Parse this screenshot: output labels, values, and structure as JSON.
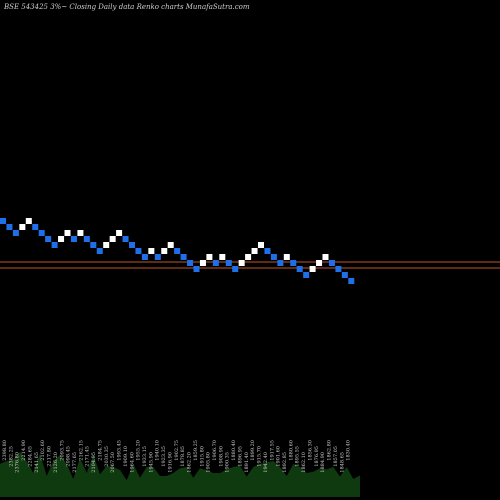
{
  "header": {
    "title": "BSE 543425 3%~  Closing Daily data  Renko  charts MunafaSutra.com"
  },
  "colors": {
    "background": "#000000",
    "up_brick": "#ffffff",
    "down_brick": "#1e6fe8",
    "reference_line": "#c0562a",
    "volume_fill": "#0f3a0f"
  },
  "chart_data": {
    "type": "renko",
    "title": "BSE 543425 3%~  Closing Daily data  Renko  charts MunafaSutra.com",
    "grid": false,
    "reference_levels": [
      1,
      0
    ],
    "bricks": [
      {
        "d": "down",
        "level": 8
      },
      {
        "d": "down",
        "level": 7
      },
      {
        "d": "down",
        "level": 6
      },
      {
        "d": "up",
        "level": 7
      },
      {
        "d": "up",
        "level": 8
      },
      {
        "d": "down",
        "level": 7
      },
      {
        "d": "down",
        "level": 6
      },
      {
        "d": "down",
        "level": 5
      },
      {
        "d": "down",
        "level": 4
      },
      {
        "d": "up",
        "level": 5
      },
      {
        "d": "up",
        "level": 6
      },
      {
        "d": "down",
        "level": 5
      },
      {
        "d": "up",
        "level": 6
      },
      {
        "d": "down",
        "level": 5
      },
      {
        "d": "down",
        "level": 4
      },
      {
        "d": "down",
        "level": 3
      },
      {
        "d": "up",
        "level": 4
      },
      {
        "d": "up",
        "level": 5
      },
      {
        "d": "up",
        "level": 6
      },
      {
        "d": "down",
        "level": 5
      },
      {
        "d": "down",
        "level": 4
      },
      {
        "d": "down",
        "level": 3
      },
      {
        "d": "down",
        "level": 2
      },
      {
        "d": "up",
        "level": 3
      },
      {
        "d": "down",
        "level": 2
      },
      {
        "d": "up",
        "level": 3
      },
      {
        "d": "up",
        "level": 4
      },
      {
        "d": "down",
        "level": 3
      },
      {
        "d": "down",
        "level": 2
      },
      {
        "d": "down",
        "level": 1
      },
      {
        "d": "down",
        "level": 0
      },
      {
        "d": "up",
        "level": 1
      },
      {
        "d": "up",
        "level": 2
      },
      {
        "d": "down",
        "level": 1
      },
      {
        "d": "up",
        "level": 2
      },
      {
        "d": "down",
        "level": 1
      },
      {
        "d": "down",
        "level": 0
      },
      {
        "d": "up",
        "level": 1
      },
      {
        "d": "up",
        "level": 2
      },
      {
        "d": "up",
        "level": 3
      },
      {
        "d": "up",
        "level": 4
      },
      {
        "d": "down",
        "level": 3
      },
      {
        "d": "down",
        "level": 2
      },
      {
        "d": "down",
        "level": 1
      },
      {
        "d": "up",
        "level": 2
      },
      {
        "d": "down",
        "level": 1
      },
      {
        "d": "down",
        "level": 0
      },
      {
        "d": "down",
        "level": -1
      },
      {
        "d": "up",
        "level": 0
      },
      {
        "d": "up",
        "level": 1
      },
      {
        "d": "up",
        "level": 2
      },
      {
        "d": "down",
        "level": 1
      },
      {
        "d": "down",
        "level": 0
      },
      {
        "d": "down",
        "level": -1
      },
      {
        "d": "down",
        "level": -2
      }
    ],
    "volume_labels": [
      "2398.80",
      "2382.25",
      "2376.80",
      "2214.90",
      "2284.65",
      "2141.65",
      "2102.60",
      "2217.80",
      "2126.20",
      "2093.75",
      "2098.45",
      "2177.65",
      "2162.15",
      "2171.45",
      "2104.95",
      "2184.75",
      "2030.35",
      "2067.50",
      "1993.45",
      "1909.10",
      "1964.60",
      "1955.20",
      "1933.15",
      "1945.90",
      "1940.10",
      "1923.35",
      "1916.90",
      "1902.75",
      "1878.85",
      "1862.20",
      "1859.25",
      "1915.80",
      "1905.80",
      "1906.70",
      "1908.90",
      "1900.35",
      "1880.40",
      "1896.95",
      "1891.40",
      "1899.20",
      "1915.70",
      "1942.40",
      "1917.55",
      "1901.60",
      "1892.85",
      "1880.60",
      "1895.55",
      "1862.10",
      "1856.30",
      "1876.95",
      "1884.90",
      "1862.80",
      "1857.05",
      "1848.65",
      "1830.40"
    ],
    "volume_profile": [
      0.55,
      0.7,
      0.62,
      0.85,
      0.6,
      0.5,
      0.72,
      0.45,
      0.6,
      0.8,
      0.55,
      0.4,
      0.65,
      0.5,
      0.7,
      0.48,
      0.52,
      0.6,
      0.45,
      0.38,
      0.55,
      0.42,
      0.5,
      0.6,
      0.35,
      0.45,
      0.4,
      0.58,
      0.5,
      0.42,
      0.48,
      0.55,
      0.4,
      0.5,
      0.46,
      0.6,
      0.52,
      0.44,
      0.5,
      0.65,
      0.58,
      0.7,
      0.5,
      0.45,
      0.55,
      0.6,
      0.4,
      0.52,
      0.48,
      0.56,
      0.5,
      0.44,
      0.5,
      0.4,
      0.36
    ]
  }
}
